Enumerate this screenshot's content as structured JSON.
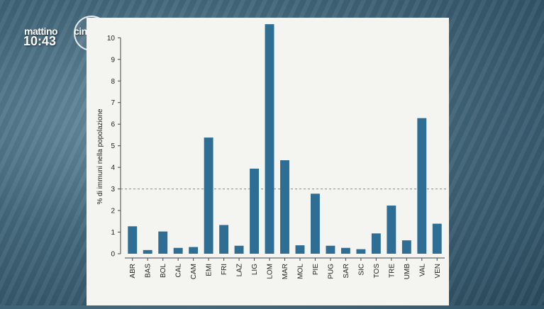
{
  "broadcast": {
    "show_name_part1": "mattino",
    "show_name_part2": "cinque",
    "time": "10:43"
  },
  "colors": {
    "bar": "#2e6d94",
    "panel": "#f4f4f1"
  },
  "chart_data": {
    "type": "bar",
    "categories": [
      "ABR",
      "BAS",
      "BOL",
      "CAL",
      "CAM",
      "EMI",
      "FRI",
      "LAZ",
      "LIG",
      "LOM",
      "MAR",
      "MOL",
      "PIE",
      "PUG",
      "SAR",
      "SIC",
      "TOS",
      "TRE",
      "UMB",
      "VAL",
      "VEN"
    ],
    "values": [
      1.27,
      0.17,
      1.03,
      0.27,
      0.31,
      5.38,
      1.33,
      0.37,
      3.94,
      10.63,
      4.33,
      0.39,
      2.78,
      0.37,
      0.27,
      0.21,
      0.94,
      2.23,
      0.62,
      6.28,
      1.39
    ],
    "title": "",
    "xlabel": "",
    "ylabel": "% di immuni nella popolazione",
    "ylim": [
      0,
      10.7
    ],
    "yticks": [
      0,
      1,
      2,
      3,
      4,
      5,
      6,
      7,
      8,
      9,
      10
    ],
    "reference_line": 3,
    "grid": false,
    "legend": "none"
  }
}
